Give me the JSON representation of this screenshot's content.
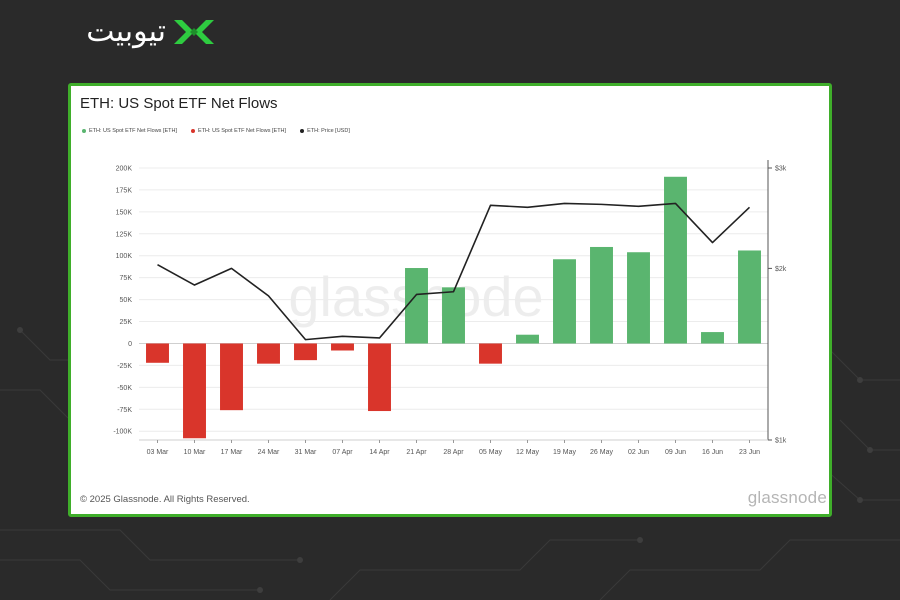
{
  "site_logo": {
    "text": "تیوبیت",
    "mark_color": "#2ecc40"
  },
  "card": {
    "border_color": "#3fae2a"
  },
  "copyright": "© 2025 Glassnode. All Rights Reserved.",
  "watermark": "glassnode",
  "brand": "glassnode",
  "chart_data": {
    "type": "bar",
    "title": "ETH: US Spot ETF Net Flows",
    "legend": [
      {
        "label": "ETH: US Spot ETF Net Flows [ETH]",
        "color": "#5ab56f"
      },
      {
        "label": "ETH: US Spot ETF Net Flows [ETH]",
        "color": "#d9352b"
      },
      {
        "label": "ETH: Price [USD]",
        "color": "#222222"
      }
    ],
    "legend_placement": "top-left",
    "categories": [
      "03 Mar",
      "10 Mar",
      "17 Mar",
      "24 Mar",
      "31 Mar",
      "07 Apr",
      "14 Apr",
      "21 Apr",
      "28 Apr",
      "05 May",
      "12 May",
      "19 May",
      "26 May",
      "02 Jun",
      "09 Jun",
      "16 Jun",
      "23 Jun"
    ],
    "series": [
      {
        "type": "bar",
        "axis": "left",
        "values": [
          -22000,
          -108000,
          -76000,
          -23000,
          -19000,
          -8000,
          -77000,
          86000,
          64000,
          -23000,
          10000,
          96000,
          110000,
          104000,
          190000,
          13000,
          106000
        ]
      },
      {
        "type": "line",
        "axis": "right",
        "values": [
          2030,
          1870,
          2000,
          1790,
          1500,
          1520,
          1510,
          1800,
          1820,
          2580,
          2560,
          2600,
          2590,
          2570,
          2600,
          2220,
          2560
        ]
      }
    ],
    "y_left": {
      "min": -110000,
      "max": 200000,
      "ticks": [
        200000,
        175000,
        150000,
        125000,
        100000,
        75000,
        50000,
        25000,
        0,
        -25000,
        -50000,
        -75000,
        -100000
      ],
      "tick_labels": [
        "200K",
        "175K",
        "150K",
        "125K",
        "100K",
        "75K",
        "50K",
        "25K",
        "0",
        "-25K",
        "-50K",
        "-75K",
        "-100K"
      ]
    },
    "y_right": {
      "scale": "log",
      "min": 1000,
      "max": 3000,
      "ticks": [
        3000,
        2000,
        1000
      ],
      "tick_labels": [
        "$3k",
        "$2k",
        "$1k"
      ]
    },
    "grid": "horizontal",
    "colors": {
      "positive": "#5ab56f",
      "negative": "#d9352b",
      "line": "#222222"
    }
  }
}
